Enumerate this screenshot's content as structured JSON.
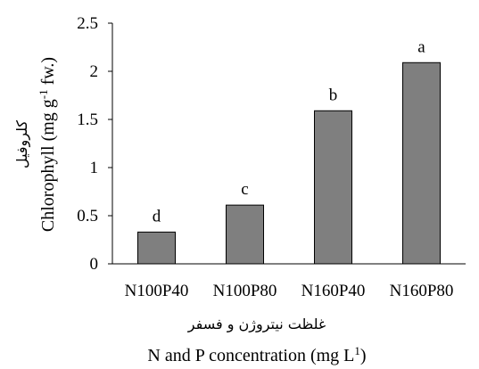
{
  "chart_data": {
    "type": "bar",
    "categories": [
      "N100P40",
      "N100P80",
      "N160P40",
      "N160P80"
    ],
    "values": [
      0.33,
      0.61,
      1.59,
      2.09
    ],
    "data_labels": [
      "d",
      "c",
      "b",
      "a"
    ],
    "ylim": [
      0,
      2.5
    ],
    "y_ticks": [
      "0",
      "0.5",
      "1",
      "1.5",
      "2",
      "2.5"
    ],
    "y_tick_values": [
      0,
      0.5,
      1,
      1.5,
      2,
      2.5
    ],
    "ylabel_fa": "کلروفیل",
    "ylabel_en": "Chlorophyll (mg g-1 fw.)",
    "ylabel_en_parts": {
      "before": "Chlorophyll (mg g",
      "sup": "-1",
      "after": " fw.)"
    },
    "xlabel_fa": "غلظت نیتروژن و فسفر",
    "xlabel_en": "N and P concentration (mg L1)",
    "xlabel_en_parts": {
      "before": "N and P concentration (mg L",
      "sup": "1",
      "after": ")"
    },
    "bar_color": "#7f7f7f",
    "grid": false,
    "legend": "none"
  }
}
